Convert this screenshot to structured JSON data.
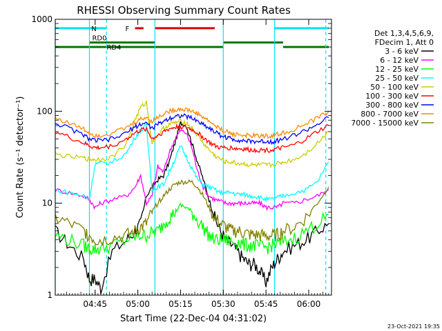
{
  "chart_data": {
    "type": "line",
    "title": "RHESSI Observing Summary Count Rates",
    "xlabel": "Start Time (22-Dec-04 04:31:02)",
    "ylabel": "Count Rate (s⁻¹ detector⁻¹)",
    "y_scale": "log",
    "ylim": [
      1,
      1000
    ],
    "xlim_minutes": [
      0,
      97
    ],
    "x_ticks": [
      {
        "label": "04:45",
        "minutes": 14
      },
      {
        "label": "05:00",
        "minutes": 29
      },
      {
        "label": "05:15",
        "minutes": 44
      },
      {
        "label": "05:30",
        "minutes": 59
      },
      {
        "label": "05:45",
        "minutes": 74
      },
      {
        "label": "06:00",
        "minutes": 89
      }
    ],
    "y_ticks": [
      {
        "label": "1",
        "value": 1
      },
      {
        "label": "10",
        "value": 10
      },
      {
        "label": "100",
        "value": 100
      },
      {
        "label": "1000",
        "value": 1000
      }
    ],
    "legend_header": [
      "Det 1,3,4,5,6,9,",
      "FDecim 1, Att 0"
    ],
    "legend_position": "right",
    "series": [
      {
        "name": "3 - 6 keV",
        "color": "#000000",
        "x": [
          0,
          5,
          10,
          12,
          14,
          16,
          20,
          25,
          28,
          30,
          32,
          34,
          36,
          38,
          40,
          42,
          44,
          46,
          48,
          50,
          52,
          54,
          56,
          58,
          60,
          62,
          64,
          66,
          68,
          70,
          72,
          74,
          76,
          78,
          80,
          84,
          88,
          92,
          96
        ],
        "y": [
          5,
          3.5,
          2.5,
          1.5,
          1.5,
          1.2,
          3,
          4,
          5,
          6,
          12,
          15,
          18,
          20,
          28,
          45,
          75,
          70,
          45,
          28,
          18,
          11,
          7,
          5,
          4,
          3.5,
          3,
          2.5,
          2.2,
          2.2,
          1.8,
          1.4,
          2,
          2.5,
          3,
          3.5,
          4,
          5,
          6
        ]
      },
      {
        "name": "6 - 12 keV",
        "color": "#ff00ff",
        "x": [
          0,
          5,
          10,
          12,
          14,
          16,
          20,
          25,
          28,
          30,
          32,
          34,
          36,
          38,
          40,
          42,
          44,
          46,
          48,
          50,
          52,
          54,
          56,
          58,
          60,
          62,
          64,
          66,
          68,
          70,
          72,
          74,
          76,
          78,
          80,
          84,
          88,
          92,
          96
        ],
        "y": [
          14,
          13,
          12,
          11,
          9,
          10,
          11,
          12,
          15,
          20,
          10,
          12,
          25,
          22,
          35,
          50,
          62,
          58,
          40,
          22,
          15,
          12,
          11,
          10.5,
          10,
          10,
          10,
          10,
          10,
          10,
          10,
          9,
          9,
          9,
          10,
          10,
          11,
          12,
          14
        ]
      },
      {
        "name": "12 - 25 keV",
        "color": "#00ff00",
        "x": [
          0,
          5,
          10,
          12,
          14,
          16,
          20,
          25,
          28,
          30,
          32,
          34,
          36,
          38,
          40,
          42,
          44,
          46,
          48,
          50,
          52,
          54,
          56,
          58,
          60,
          62,
          64,
          66,
          68,
          70,
          72,
          74,
          76,
          78,
          80,
          84,
          88,
          92,
          96
        ],
        "y": [
          4.5,
          4,
          3.5,
          3.2,
          3.2,
          3.2,
          3.5,
          4,
          4.3,
          4.5,
          4.5,
          4.8,
          5,
          6,
          7,
          8,
          9.5,
          9,
          8,
          6.5,
          5.5,
          4.5,
          4,
          4,
          4,
          3.8,
          3.8,
          3.6,
          3.5,
          3.5,
          3.4,
          3.3,
          3.5,
          3.6,
          3.8,
          4.2,
          5,
          6,
          7.5
        ]
      },
      {
        "name": "25 - 50 keV",
        "color": "#00ffff",
        "x": [
          0,
          5,
          10,
          12,
          14,
          16,
          20,
          25,
          28,
          30,
          32,
          34,
          36,
          38,
          40,
          42,
          44,
          46,
          48,
          50,
          52,
          54,
          56,
          58,
          60,
          62,
          64,
          66,
          68,
          70,
          72,
          74,
          76,
          78,
          80,
          84,
          88,
          92,
          96
        ],
        "y": [
          14,
          13,
          12,
          11,
          27,
          27,
          28,
          35,
          52,
          62,
          70,
          14,
          15,
          16,
          22,
          30,
          42,
          32,
          24,
          18,
          16,
          15,
          14,
          13,
          13,
          13,
          12.5,
          12.5,
          12,
          12,
          11.5,
          11,
          11,
          11.5,
          12,
          13,
          14,
          17,
          28
        ]
      },
      {
        "name": "50 - 100 keV",
        "color": "#cccc00",
        "x": [
          0,
          5,
          10,
          12,
          14,
          16,
          20,
          25,
          28,
          30,
          32,
          34,
          36,
          38,
          40,
          42,
          44,
          46,
          48,
          50,
          52,
          54,
          56,
          58,
          60,
          62,
          64,
          66,
          68,
          70,
          72,
          74,
          76,
          78,
          80,
          84,
          88,
          92,
          96
        ],
        "y": [
          34,
          32,
          31,
          30,
          30,
          30,
          32,
          45,
          80,
          110,
          125,
          45,
          55,
          65,
          72,
          75,
          78,
          75,
          65,
          55,
          45,
          38,
          33,
          30,
          28,
          28,
          27,
          27,
          26,
          26,
          26,
          26,
          26,
          27,
          28,
          30,
          35,
          45,
          60
        ]
      },
      {
        "name": "100 - 300 keV",
        "color": "#ff0000",
        "x": [
          0,
          5,
          10,
          12,
          14,
          16,
          20,
          25,
          28,
          30,
          32,
          34,
          36,
          38,
          40,
          42,
          44,
          46,
          48,
          50,
          52,
          54,
          56,
          58,
          60,
          62,
          64,
          66,
          68,
          70,
          72,
          74,
          76,
          78,
          80,
          84,
          88,
          92,
          96
        ],
        "y": [
          60,
          52,
          45,
          42,
          40,
          40,
          42,
          50,
          58,
          62,
          65,
          50,
          55,
          60,
          64,
          67,
          68,
          67,
          63,
          58,
          52,
          46,
          42,
          40,
          40,
          40,
          39,
          39,
          38,
          38,
          38,
          38,
          38,
          39,
          40,
          43,
          50,
          60,
          70
        ]
      },
      {
        "name": "300 - 800 keV",
        "color": "#0000ff",
        "x": [
          0,
          5,
          10,
          12,
          14,
          16,
          20,
          25,
          28,
          30,
          32,
          34,
          36,
          38,
          40,
          42,
          44,
          46,
          48,
          50,
          52,
          54,
          56,
          58,
          60,
          62,
          64,
          66,
          68,
          70,
          72,
          74,
          76,
          78,
          80,
          84,
          88,
          92,
          96
        ],
        "y": [
          75,
          65,
          55,
          50,
          48,
          48,
          50,
          58,
          68,
          72,
          75,
          65,
          72,
          78,
          84,
          88,
          90,
          88,
          84,
          78,
          72,
          66,
          60,
          55,
          52,
          50,
          49,
          48,
          47,
          47,
          47,
          47,
          47,
          48,
          50,
          55,
          62,
          72,
          85
        ]
      },
      {
        "name": "800 - 7000 keV",
        "color": "#ff8800",
        "x": [
          0,
          5,
          10,
          12,
          14,
          16,
          20,
          25,
          28,
          30,
          32,
          34,
          36,
          38,
          40,
          42,
          44,
          46,
          48,
          50,
          52,
          54,
          56,
          58,
          60,
          62,
          64,
          66,
          68,
          70,
          72,
          74,
          76,
          78,
          80,
          84,
          88,
          92,
          96
        ],
        "y": [
          85,
          74,
          64,
          58,
          55,
          55,
          58,
          66,
          76,
          82,
          86,
          78,
          86,
          94,
          100,
          104,
          106,
          104,
          100,
          94,
          86,
          78,
          70,
          64,
          60,
          57,
          56,
          55,
          54,
          54,
          54,
          54,
          54,
          56,
          58,
          64,
          72,
          84,
          100
        ]
      },
      {
        "name": "7000 - 15000 keV",
        "color": "#808000",
        "x": [
          0,
          5,
          10,
          12,
          14,
          16,
          20,
          25,
          28,
          30,
          32,
          34,
          36,
          38,
          40,
          42,
          44,
          46,
          48,
          50,
          52,
          54,
          56,
          58,
          60,
          62,
          64,
          66,
          68,
          70,
          72,
          74,
          76,
          78,
          80,
          84,
          88,
          92,
          96
        ],
        "y": [
          7,
          6,
          5,
          4.5,
          4,
          4,
          4.2,
          4.5,
          5,
          5.5,
          6,
          8,
          10,
          12,
          14,
          16,
          17,
          17,
          17,
          15,
          12,
          9,
          7,
          6,
          5.5,
          5,
          5,
          4.8,
          4.6,
          4.5,
          4.5,
          4.4,
          4.4,
          4.6,
          5,
          5.5,
          7,
          10,
          15
        ]
      }
    ],
    "flags": [
      {
        "label": "N",
        "color": "#00e5ee",
        "value": 800,
        "segments": [
          [
            0,
            18
          ],
          [
            77,
            96
          ]
        ]
      },
      {
        "label": "F",
        "color": "#dd0000",
        "value": 800,
        "segments": [
          [
            28,
            31
          ],
          [
            35,
            56
          ]
        ]
      },
      {
        "label": "RD0",
        "color": "#007700",
        "value": 560,
        "segments": [
          [
            12,
            35
          ],
          [
            59,
            80
          ]
        ]
      },
      {
        "label": "RD4",
        "color": "#007700",
        "value": 500,
        "segments": [
          [
            0,
            35
          ],
          [
            35,
            59
          ],
          [
            80,
            96
          ]
        ]
      }
    ],
    "vlines_solid_minutes": [
      0,
      12,
      35,
      59,
      77
    ],
    "vlines_dashed_minutes": [
      18,
      95
    ],
    "vline_color": "#00e5ee"
  },
  "footer": {
    "timestamp": "23-Oct-2021 19:35"
  }
}
